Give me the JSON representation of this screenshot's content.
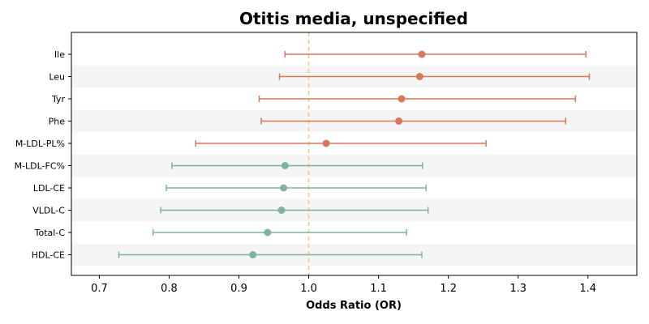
{
  "chart_data": {
    "type": "forest",
    "title": "Otitis media, unspecified",
    "xlabel": "Odds Ratio (OR)",
    "xlim": [
      0.66,
      1.47
    ],
    "xticks": [
      0.7,
      0.8,
      0.9,
      1.0,
      1.1,
      1.2,
      1.3,
      1.4
    ],
    "xtick_labels": [
      "0.7",
      "0.8",
      "0.9",
      "1.0",
      "1.1",
      "1.2",
      "1.3",
      "1.4"
    ],
    "reference_line": 1.0,
    "colors": {
      "positive": "#d9775a",
      "negative": "#7fb39a",
      "reference": "#f5c77e",
      "band": "#f5f5f5"
    },
    "rows": [
      {
        "label": "Ile",
        "or": 1.162,
        "lower": 0.966,
        "upper": 1.397,
        "group": "positive"
      },
      {
        "label": "Leu",
        "or": 1.159,
        "lower": 0.958,
        "upper": 1.402,
        "group": "positive"
      },
      {
        "label": "Tyr",
        "or": 1.133,
        "lower": 0.929,
        "upper": 1.382,
        "group": "positive"
      },
      {
        "label": "Phe",
        "or": 1.129,
        "lower": 0.932,
        "upper": 1.368,
        "group": "positive"
      },
      {
        "label": "M-LDL-PL%",
        "or": 1.025,
        "lower": 0.838,
        "upper": 1.254,
        "group": "positive"
      },
      {
        "label": "M-LDL-FC%",
        "or": 0.966,
        "lower": 0.804,
        "upper": 1.163,
        "group": "negative"
      },
      {
        "label": "LDL-CE",
        "or": 0.964,
        "lower": 0.796,
        "upper": 1.168,
        "group": "negative"
      },
      {
        "label": "VLDL-C",
        "or": 0.961,
        "lower": 0.788,
        "upper": 1.171,
        "group": "negative"
      },
      {
        "label": "Total-C",
        "or": 0.941,
        "lower": 0.777,
        "upper": 1.14,
        "group": "negative"
      },
      {
        "label": "HDL-CE",
        "or": 0.92,
        "lower": 0.728,
        "upper": 1.162,
        "group": "negative"
      }
    ]
  }
}
